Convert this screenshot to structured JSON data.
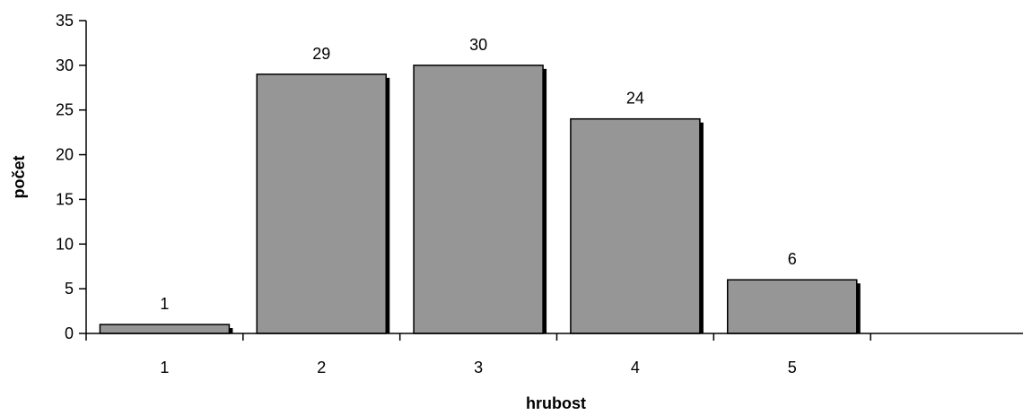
{
  "chart_data": {
    "type": "bar",
    "title": "",
    "xlabel": "hrubost",
    "ylabel": "počet",
    "categories": [
      "1",
      "2",
      "3",
      "4",
      "5",
      ""
    ],
    "values": [
      1,
      29,
      30,
      24,
      6,
      null
    ],
    "data_labels": [
      "1",
      "29",
      "30",
      "24",
      "6",
      ""
    ],
    "ylim": [
      0,
      35
    ],
    "yticks": [
      "0",
      "5",
      "10",
      "15",
      "20",
      "25",
      "30",
      "35"
    ],
    "grid": false,
    "legend": "none",
    "bar_color": "#969696",
    "bar_shadow_color": "#000000"
  }
}
